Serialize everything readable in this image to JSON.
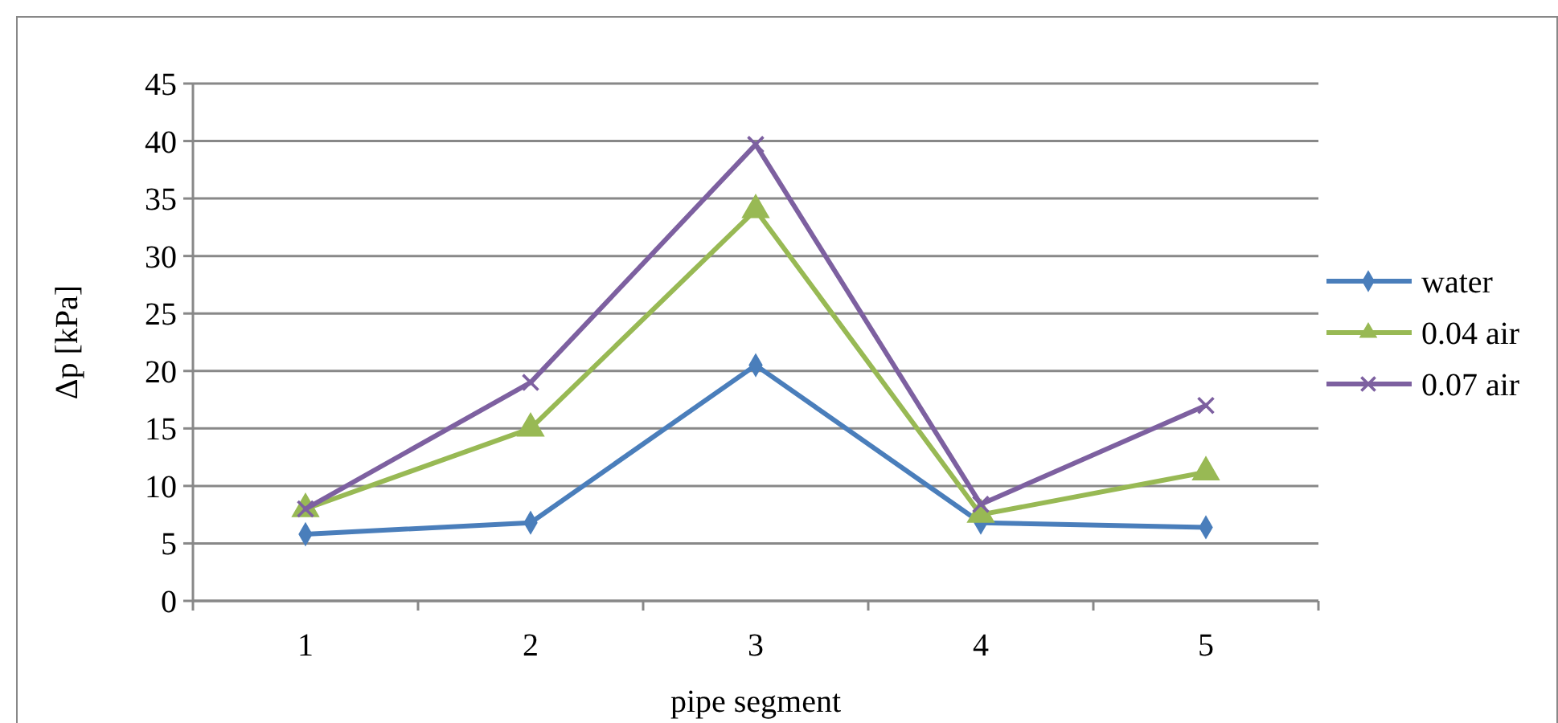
{
  "chart_data": {
    "type": "line",
    "xlabel": "pipe segment",
    "ylabel": "Δp [kPa]",
    "categories": [
      "1",
      "2",
      "3",
      "4",
      "5"
    ],
    "series": [
      {
        "name": "water",
        "color": "#4a7ebb",
        "marker": "diamond",
        "values": [
          5.8,
          6.8,
          20.5,
          6.8,
          6.4
        ]
      },
      {
        "name": "0.04 air",
        "color": "#98b954",
        "marker": "triangle",
        "values": [
          8,
          15,
          34,
          7.5,
          11.2
        ]
      },
      {
        "name": "0.07 air",
        "color": "#7d60a0",
        "marker": "cross",
        "values": [
          8,
          19,
          39.7,
          8.4,
          17
        ]
      }
    ],
    "ylim": [
      0,
      45
    ],
    "yticks": [
      0,
      5,
      10,
      15,
      20,
      25,
      30,
      35,
      40,
      45
    ],
    "grid": "y",
    "legend": "right"
  }
}
